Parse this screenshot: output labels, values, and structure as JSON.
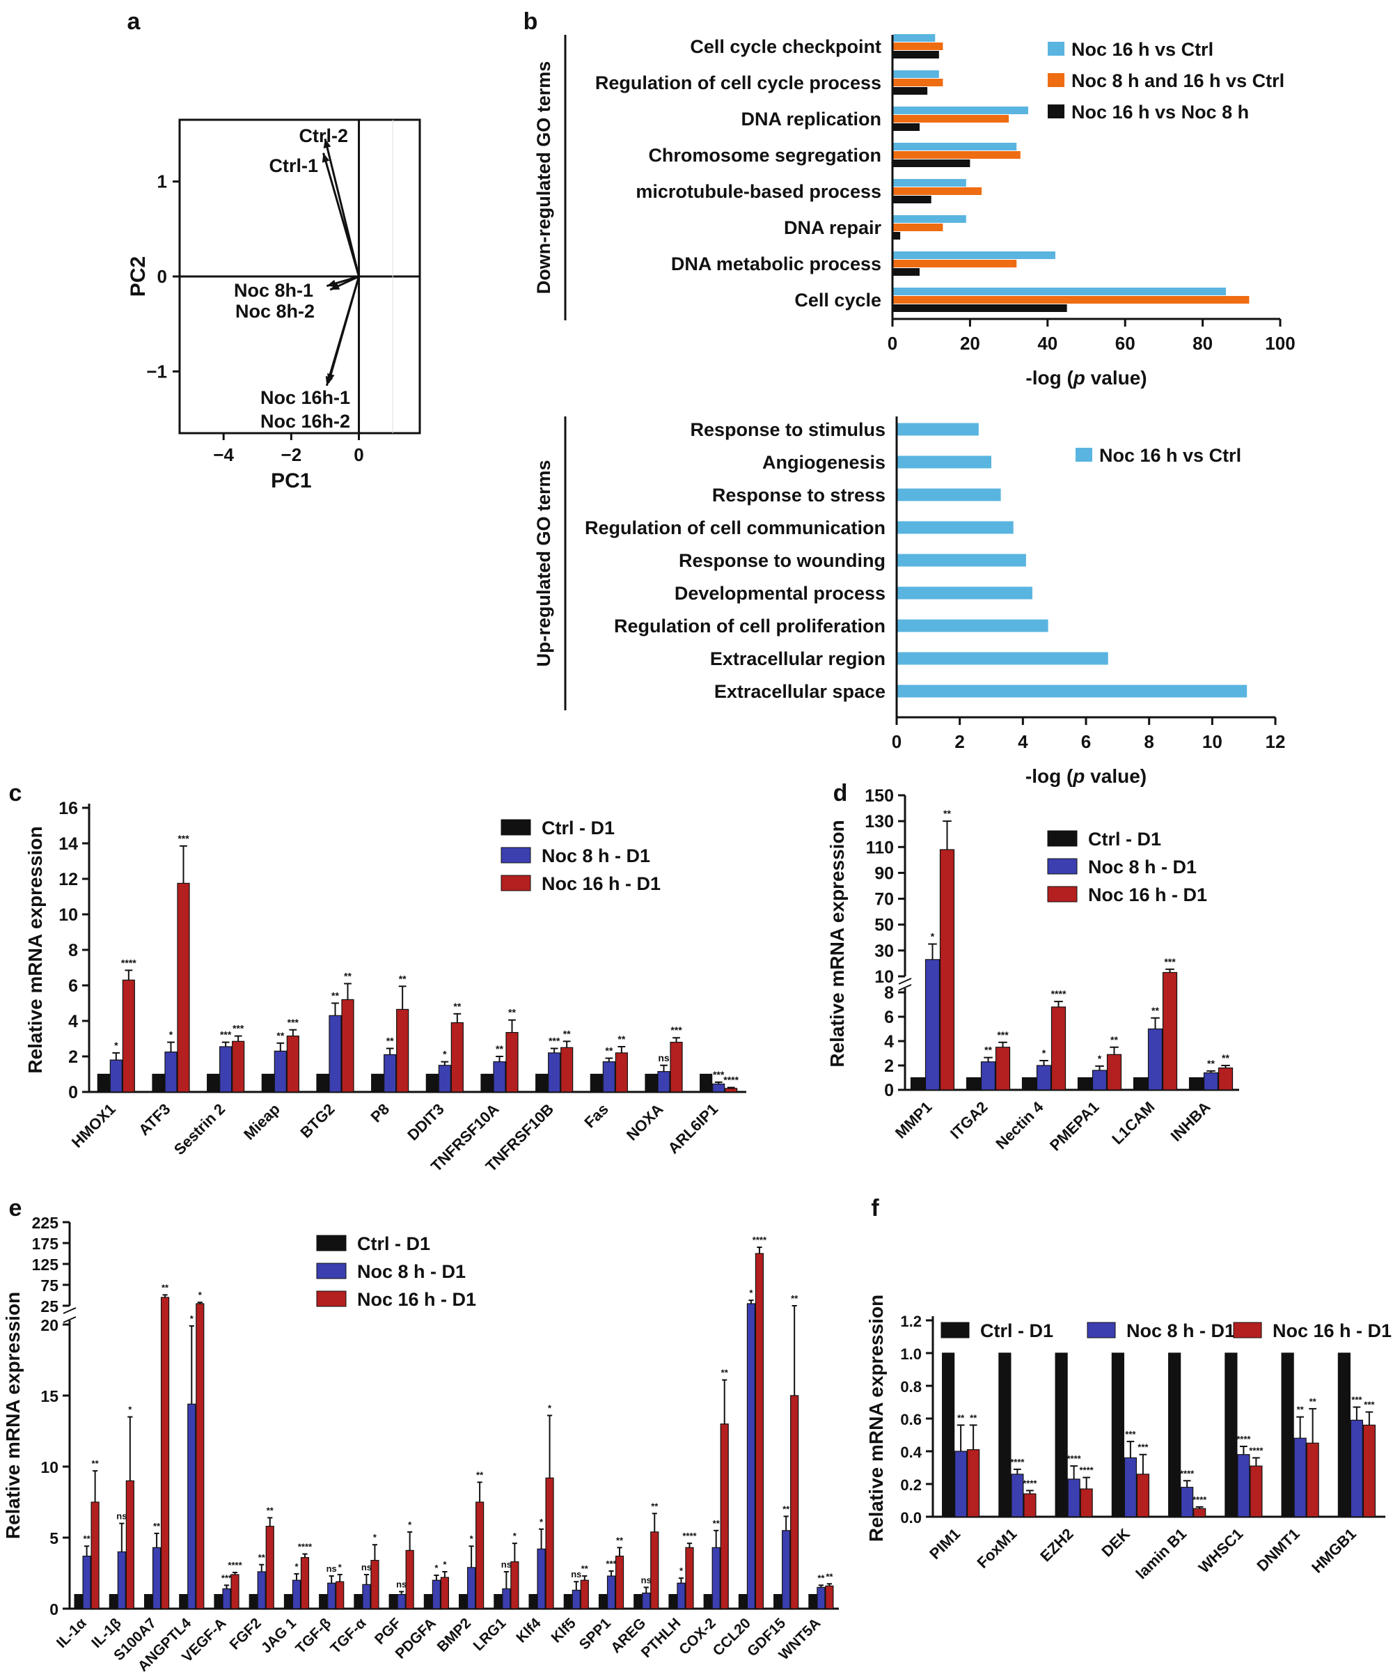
{
  "colors": {
    "ctrl": "#111111",
    "noc8": "#3c3fb0",
    "noc16": "#b3201f",
    "blue": "#5ab4e0",
    "orange": "#ee6c12",
    "black": "#111111"
  },
  "chart_data": [
    {
      "id": "a",
      "type": "scatter",
      "panel_label": "a",
      "xlabel": "PC1",
      "ylabel": "PC2",
      "xlim": [
        -5.3,
        1.8
      ],
      "ylim": [
        -1.65,
        1.65
      ],
      "xticks": [
        -4,
        -2,
        0
      ],
      "yticks": [
        -1,
        0,
        1
      ],
      "xtick_labels": [
        "−4",
        "−2",
        "0"
      ],
      "ytick_labels": [
        "−1",
        "0",
        "1"
      ],
      "vectors": [
        {
          "name": "Ctrl-2",
          "x": -1.0,
          "y": 1.45
        },
        {
          "name": "Ctrl-1",
          "x": -1.05,
          "y": 1.3
        },
        {
          "name": "Noc 8h-1",
          "x": -0.95,
          "y": -0.1
        },
        {
          "name": "Noc 8h-2",
          "x": -0.85,
          "y": -0.14
        },
        {
          "name": "Noc 16h-1",
          "x": -0.95,
          "y": -1.15
        },
        {
          "name": "Noc 16h-2",
          "x": -0.9,
          "y": -1.12
        }
      ],
      "labels": [
        "Ctrl-2",
        "Ctrl-1",
        "Noc 8h-1",
        "Noc 8h-2",
        "Noc 16h-1",
        "Noc 16h-2"
      ]
    },
    {
      "id": "b1",
      "type": "bar",
      "orientation": "horizontal",
      "panel_label": "b",
      "ylabel": "Down-regulated GO terms",
      "xlabel_pre": "-log (",
      "xlabel_italic": "p",
      "xlabel_post": " value)",
      "xlim": [
        0,
        100
      ],
      "xticks": [
        0,
        20,
        40,
        60,
        80,
        100
      ],
      "categories": [
        "Cell cycle checkpoint",
        "Regulation of cell cycle process",
        "DNA replication",
        "Chromosome segregation",
        "microtubule-based process",
        "DNA repair",
        "DNA metabolic process",
        "Cell cycle"
      ],
      "series": [
        {
          "name": "Noc 16 h vs Ctrl",
          "color": "blue",
          "values": [
            11,
            12,
            35,
            32,
            19,
            19,
            42,
            86
          ]
        },
        {
          "name": "Noc 8 h and 16 h vs Ctrl",
          "color": "orange",
          "values": [
            13,
            13,
            30,
            33,
            23,
            13,
            32,
            92
          ]
        },
        {
          "name": "Noc 16 h vs Noc 8 h",
          "color": "black",
          "values": [
            12,
            9,
            7,
            20,
            10,
            2,
            7,
            45
          ]
        }
      ]
    },
    {
      "id": "b2",
      "type": "bar",
      "orientation": "horizontal",
      "ylabel": "Up-regulated GO terms",
      "xlabel_pre": "-log (",
      "xlabel_italic": "p",
      "xlabel_post": " value)",
      "xlim": [
        0,
        12
      ],
      "xticks": [
        0,
        2,
        4,
        6,
        8,
        10,
        12
      ],
      "categories": [
        "Response to stimulus",
        "Angiogenesis",
        "Response to stress",
        "Regulation of cell communication",
        "Response to wounding",
        "Developmental process",
        "Regulation of cell proliferation",
        "Extracellular region",
        "Extracellular space"
      ],
      "series": [
        {
          "name": "Noc 16 h vs Ctrl",
          "color": "blue",
          "values": [
            2.6,
            3.0,
            3.3,
            3.7,
            4.1,
            4.3,
            4.8,
            6.7,
            11.1
          ]
        }
      ]
    },
    {
      "id": "c",
      "type": "bar",
      "panel_label": "c",
      "ylabel": "Relative mRNA expression",
      "ylim": [
        0,
        16
      ],
      "yticks": [
        0,
        2,
        4,
        6,
        8,
        10,
        12,
        14,
        16
      ],
      "categories": [
        "HMOX1",
        "ATF3",
        "Sestrin 2",
        "Mieap",
        "BTG2",
        "P8",
        "DDIT3",
        "TNFRSF10A",
        "TNFRSF10B",
        "Fas",
        "NOXA",
        "ARL6IP1"
      ],
      "series": [
        {
          "name": "Ctrl - D1",
          "color": "ctrl",
          "values": [
            1,
            1,
            1,
            1,
            1,
            1,
            1,
            1,
            1,
            1,
            1,
            1
          ],
          "errors": [
            0,
            0,
            0,
            0,
            0,
            0,
            0,
            0,
            0,
            0,
            0,
            0
          ]
        },
        {
          "name": "Noc 8 h - D1",
          "color": "noc8",
          "values": [
            1.8,
            2.25,
            2.55,
            2.3,
            4.3,
            2.1,
            1.5,
            1.7,
            2.2,
            1.7,
            1.15,
            0.45
          ],
          "errors": [
            0.4,
            0.55,
            0.25,
            0.45,
            0.7,
            0.35,
            0.2,
            0.3,
            0.25,
            0.2,
            0.35,
            0.1
          ],
          "sig": [
            "*",
            "*",
            "***",
            "**",
            "**",
            "**",
            "*",
            "**",
            "***",
            "**",
            "ns",
            "***"
          ]
        },
        {
          "name": "Noc 16 h - D1",
          "color": "noc16",
          "values": [
            6.3,
            11.75,
            2.85,
            3.15,
            5.2,
            4.65,
            3.9,
            3.35,
            2.5,
            2.2,
            2.8,
            0.2
          ],
          "errors": [
            0.55,
            2.1,
            0.3,
            0.35,
            0.9,
            1.3,
            0.5,
            0.7,
            0.35,
            0.35,
            0.25,
            0.05
          ],
          "sig": [
            "****",
            "***",
            "***",
            "***",
            "**",
            "**",
            "**",
            "**",
            "**",
            "**",
            "***",
            "****"
          ]
        }
      ]
    },
    {
      "id": "d",
      "type": "bar",
      "panel_label": "d",
      "ylabel": "Relative mRNA expression",
      "axis_break": true,
      "yticks_low": [
        0,
        2,
        4,
        6,
        8
      ],
      "yticks_high": [
        10,
        30,
        50,
        70,
        90,
        110,
        130,
        150
      ],
      "categories": [
        "MMP1",
        "ITGA2",
        "Nectin 4",
        "PMEPA1",
        "L1CAM",
        "INHBA"
      ],
      "series": [
        {
          "name": "Ctrl - D1",
          "color": "ctrl",
          "values": [
            1,
            1,
            1,
            1,
            1,
            1
          ],
          "errors": [
            0,
            0,
            0,
            0,
            0,
            0
          ]
        },
        {
          "name": "Noc 8 h - D1",
          "color": "noc8",
          "values": [
            23,
            2.3,
            2.0,
            1.6,
            5.0,
            1.4
          ],
          "errors": [
            12,
            0.35,
            0.4,
            0.35,
            0.9,
            0.15
          ],
          "sig": [
            "*",
            "**",
            "*",
            "*",
            "**",
            "**"
          ]
        },
        {
          "name": "Noc 16 h - D1",
          "color": "noc16",
          "values": [
            108,
            3.5,
            6.8,
            2.9,
            13,
            1.8
          ],
          "errors": [
            22,
            0.4,
            0.45,
            0.6,
            2.5,
            0.2
          ],
          "sig": [
            "**",
            "***",
            "****",
            "**",
            "***",
            "**"
          ]
        }
      ]
    },
    {
      "id": "e",
      "type": "bar",
      "panel_label": "e",
      "ylabel": "Relative mRNA expression",
      "axis_break": true,
      "yticks_low": [
        0,
        5,
        10,
        15,
        20
      ],
      "yticks_high": [
        25,
        75,
        125,
        175,
        225
      ],
      "categories": [
        "IL-1α",
        "IL-1β",
        "S100A7",
        "ANGPTL4",
        "VEGF-A",
        "FGF2",
        "JAG 1",
        "TGF-β",
        "TGF-α",
        "PGF",
        "PDGFA",
        "BMP2",
        "LRG1",
        "Klf4",
        "Klf5",
        "SPP1",
        "AREG",
        "PTHLH",
        "COX-2",
        "CCL20",
        "GDF15",
        "WNT5A"
      ],
      "series": [
        {
          "name": "Ctrl - D1",
          "color": "ctrl",
          "values": [
            1,
            1,
            1,
            1,
            1,
            1,
            1,
            1,
            1,
            1,
            1,
            1,
            1,
            1,
            1,
            1,
            1,
            1,
            1,
            1,
            1,
            1
          ],
          "errors": [
            0,
            0,
            0,
            0,
            0,
            0,
            0,
            0,
            0,
            0,
            0,
            0,
            0,
            0,
            0,
            0,
            0,
            0,
            0,
            0,
            0,
            0
          ]
        },
        {
          "name": "Noc 8 h - D1",
          "color": "noc8",
          "values": [
            3.7,
            4.0,
            4.3,
            14.4,
            1.4,
            2.6,
            2.0,
            1.8,
            1.7,
            1.0,
            2.0,
            2.9,
            1.4,
            4.2,
            1.3,
            2.3,
            1.1,
            1.8,
            4.3,
            30,
            5.5,
            1.5
          ],
          "errors": [
            0.7,
            2.0,
            1.0,
            5.5,
            0.25,
            0.5,
            0.45,
            0.5,
            0.7,
            0.2,
            0.35,
            1.5,
            1.2,
            1.4,
            0.6,
            0.35,
            0.4,
            0.35,
            1.2,
            8,
            1.0,
            0.15
          ],
          "sig": [
            "**",
            "ns",
            "**",
            "*",
            "***",
            "**",
            "*",
            "ns",
            "ns",
            "ns",
            "*",
            "*",
            "ns",
            "*",
            "ns",
            "***",
            "ns",
            "*",
            "**",
            "*",
            "**",
            "**"
          ]
        },
        {
          "name": "Noc 16 h - D1",
          "color": "noc16",
          "values": [
            7.5,
            9.0,
            45,
            30,
            2.4,
            5.8,
            3.6,
            1.9,
            3.4,
            4.1,
            2.2,
            7.5,
            3.3,
            9.2,
            2.0,
            3.7,
            5.4,
            4.3,
            13.0,
            150,
            15,
            1.6
          ],
          "errors": [
            2.2,
            4.5,
            6,
            3,
            0.15,
            0.6,
            0.25,
            0.5,
            1.1,
            1.3,
            0.4,
            1.4,
            1.3,
            4.4,
            0.3,
            0.6,
            1.3,
            0.3,
            3.1,
            15,
            8,
            0.15
          ],
          "sig": [
            "**",
            "*",
            "**",
            "*",
            "****",
            "**",
            "****",
            "*",
            "*",
            "*",
            "*",
            "**",
            "*",
            "*",
            "**",
            "**",
            "**",
            "****",
            "**",
            "****",
            "**",
            "**"
          ]
        }
      ]
    },
    {
      "id": "f",
      "type": "bar",
      "panel_label": "f",
      "ylabel": "Relative mRNA expression",
      "ylim": [
        0,
        1.2
      ],
      "yticks": [
        0.0,
        0.2,
        0.4,
        0.6,
        0.8,
        1.0,
        1.2
      ],
      "categories": [
        "PIM1",
        "FoxM1",
        "EZH2",
        "DEK",
        "lamin B1",
        "WHSC1",
        "DNMT1",
        "HMGB1"
      ],
      "series": [
        {
          "name": "Ctrl - D1",
          "color": "ctrl",
          "values": [
            1,
            1,
            1,
            1,
            1,
            1,
            1,
            1
          ],
          "errors": [
            0,
            0,
            0,
            0,
            0,
            0,
            0,
            0
          ]
        },
        {
          "name": "Noc 8 h - D1",
          "color": "noc8",
          "values": [
            0.4,
            0.26,
            0.23,
            0.36,
            0.18,
            0.38,
            0.48,
            0.59
          ],
          "errors": [
            0.16,
            0.03,
            0.08,
            0.1,
            0.04,
            0.05,
            0.13,
            0.08
          ],
          "sig": [
            "**",
            "****",
            "****",
            "***",
            "****",
            "****",
            "**",
            "***"
          ]
        },
        {
          "name": "Noc 16 h - D1",
          "color": "noc16",
          "values": [
            0.41,
            0.14,
            0.17,
            0.26,
            0.05,
            0.31,
            0.45,
            0.56
          ],
          "errors": [
            0.15,
            0.02,
            0.07,
            0.12,
            0.01,
            0.05,
            0.21,
            0.08
          ],
          "sig": [
            "**",
            "****",
            "****",
            "***",
            "****",
            "****",
            "**",
            "***"
          ]
        }
      ]
    }
  ]
}
